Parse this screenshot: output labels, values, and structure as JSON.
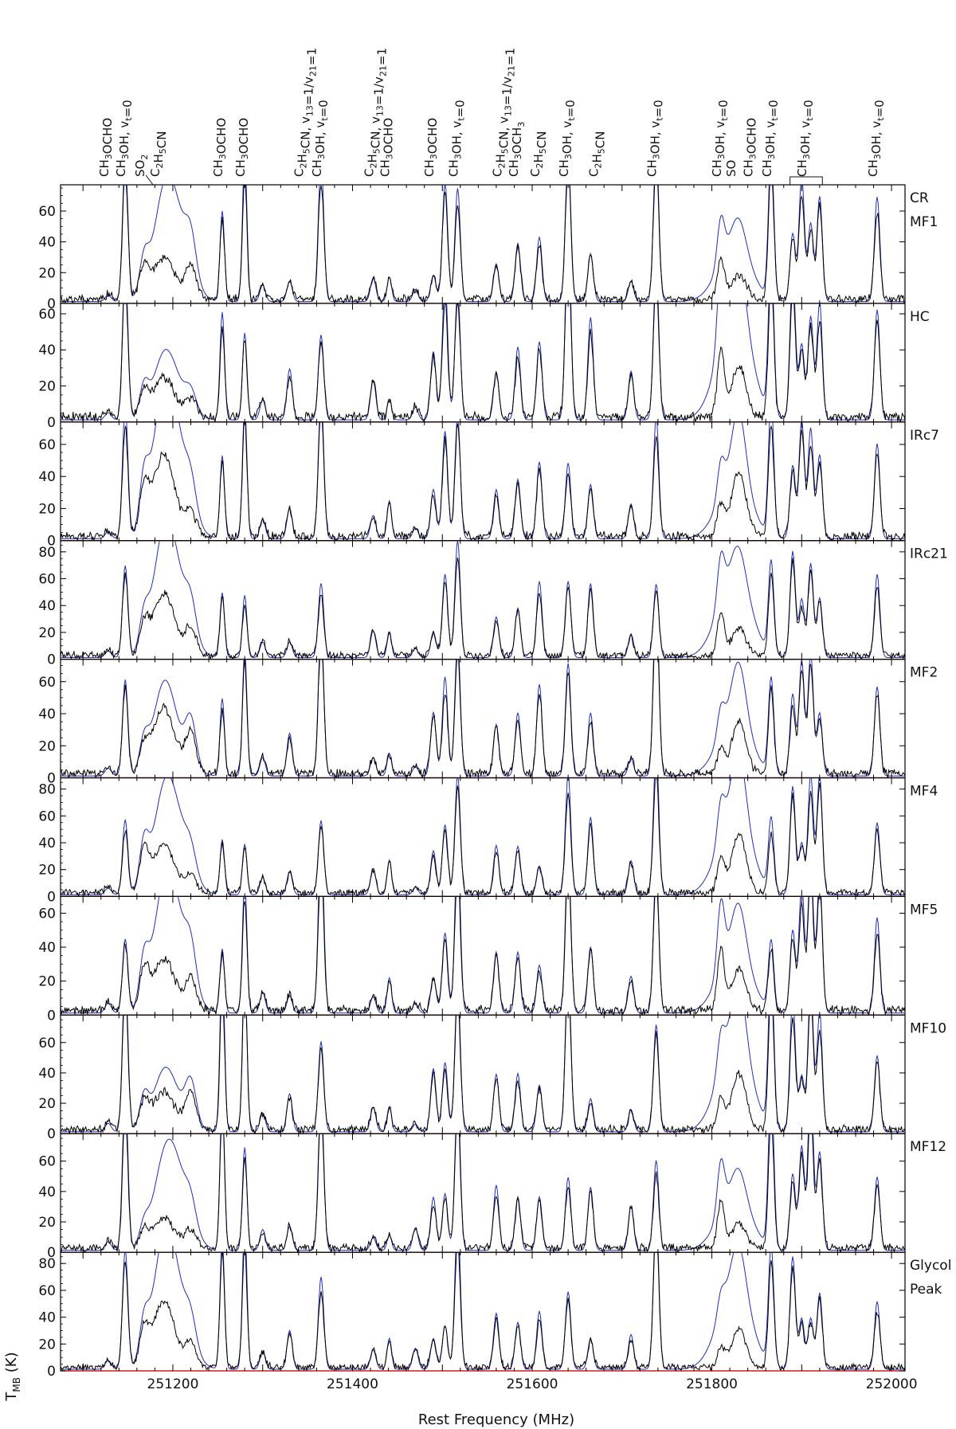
{
  "chart_data": {
    "type": "line",
    "xlabel": "Rest Frequency (MHz)",
    "ylabel": "T_MB (K)",
    "ylabel_main": "T",
    "ylabel_sub": "MB",
    "ylabel_unit": " (K)",
    "xlim": [
      251075,
      252015
    ],
    "xticks": [
      251200,
      251400,
      251600,
      251800,
      252000
    ],
    "xtick_labels": [
      "251200",
      "251400",
      "251600",
      "251800",
      "252000"
    ],
    "colors": {
      "observed": "#000000",
      "model": "#1f2fb8",
      "baseline": "#e01010"
    },
    "series": [
      {
        "name": "observed spectrum",
        "color": "#000000"
      },
      {
        "name": "model",
        "color": "#1f2fb8"
      },
      {
        "name": "baseline",
        "color": "#e01010"
      }
    ],
    "line_labels": [
      {
        "freq": 251128,
        "text": "CH3OCHO",
        "parts": [
          [
            "CH",
            0
          ],
          [
            "3",
            1
          ],
          [
            "OCHO",
            0
          ]
        ]
      },
      {
        "freq": 251147,
        "text": "CH3OH, vt=0",
        "parts": [
          [
            "CH",
            0
          ],
          [
            "3",
            1
          ],
          [
            "OH, v",
            0
          ],
          [
            "t",
            1
          ],
          [
            "=0",
            0
          ]
        ]
      },
      {
        "freq": 251168,
        "text": "SO2",
        "parts": [
          [
            "SO",
            0
          ],
          [
            "2",
            1
          ]
        ]
      },
      {
        "freq": 251185,
        "text": "C2H5CN",
        "parts": [
          [
            "C",
            0
          ],
          [
            "2",
            1
          ],
          [
            "H",
            0
          ],
          [
            "5",
            1
          ],
          [
            "CN",
            0
          ]
        ]
      },
      {
        "freq": 251255,
        "text": "CH3OCHO",
        "parts": [
          [
            "CH",
            0
          ],
          [
            "3",
            1
          ],
          [
            "OCHO",
            0
          ]
        ]
      },
      {
        "freq": 251280,
        "text": "CH3OCHO",
        "parts": [
          [
            "CH",
            0
          ],
          [
            "3",
            1
          ],
          [
            "OCHO",
            0
          ]
        ]
      },
      {
        "freq": 251345,
        "text": "C2H5CN, v13=1/v21=1",
        "parts": [
          [
            "C",
            0
          ],
          [
            "2",
            1
          ],
          [
            "H",
            0
          ],
          [
            "5",
            1
          ],
          [
            "CN, v",
            0
          ],
          [
            "13",
            1
          ],
          [
            "=1/v",
            0
          ],
          [
            "21",
            1
          ],
          [
            "=1",
            0
          ]
        ]
      },
      {
        "freq": 251365,
        "text": "CH3OH, vt=0",
        "parts": [
          [
            "CH",
            0
          ],
          [
            "3",
            1
          ],
          [
            "OH, v",
            0
          ],
          [
            "t",
            1
          ],
          [
            "=0",
            0
          ]
        ]
      },
      {
        "freq": 251423,
        "text": "C2H5CN, v13=1/v21=1",
        "parts": [
          [
            "C",
            0
          ],
          [
            "2",
            1
          ],
          [
            "H",
            0
          ],
          [
            "5",
            1
          ],
          [
            "CN, v",
            0
          ],
          [
            "13",
            1
          ],
          [
            "=1/v",
            0
          ],
          [
            "21",
            1
          ],
          [
            "=1",
            0
          ]
        ]
      },
      {
        "freq": 251441,
        "text": "CH3OCHO",
        "parts": [
          [
            "CH",
            0
          ],
          [
            "3",
            1
          ],
          [
            "OCHO",
            0
          ]
        ]
      },
      {
        "freq": 251490,
        "text": "CH3OCHO",
        "parts": [
          [
            "CH",
            0
          ],
          [
            "3",
            1
          ],
          [
            "OCHO",
            0
          ]
        ]
      },
      {
        "freq": 251517,
        "text": "CH3OH, vt=0",
        "parts": [
          [
            "CH",
            0
          ],
          [
            "3",
            1
          ],
          [
            "OH, v",
            0
          ],
          [
            "t",
            1
          ],
          [
            "=0",
            0
          ]
        ]
      },
      {
        "freq": 251566,
        "text": "C2H5CN, v13=1/v21=1",
        "parts": [
          [
            "C",
            0
          ],
          [
            "2",
            1
          ],
          [
            "H",
            0
          ],
          [
            "5",
            1
          ],
          [
            "CN, v",
            0
          ],
          [
            "13",
            1
          ],
          [
            "=1/v",
            0
          ],
          [
            "21",
            1
          ],
          [
            "=1",
            0
          ]
        ]
      },
      {
        "freq": 251584,
        "text": "CH3OCH3",
        "parts": [
          [
            "CH",
            0
          ],
          [
            "3",
            1
          ],
          [
            "OCH",
            0
          ],
          [
            "3",
            1
          ]
        ]
      },
      {
        "freq": 251608,
        "text": "C2H5CN",
        "parts": [
          [
            "C",
            0
          ],
          [
            "2",
            1
          ],
          [
            "H",
            0
          ],
          [
            "5",
            1
          ],
          [
            "CN",
            0
          ]
        ]
      },
      {
        "freq": 251640,
        "text": "CH3OH, vt=0",
        "parts": [
          [
            "CH",
            0
          ],
          [
            "3",
            1
          ],
          [
            "OH, v",
            0
          ],
          [
            "t",
            1
          ],
          [
            "=0",
            0
          ]
        ]
      },
      {
        "freq": 251673,
        "text": "C2H5CN",
        "parts": [
          [
            "C",
            0
          ],
          [
            "2",
            1
          ],
          [
            "H",
            0
          ],
          [
            "5",
            1
          ],
          [
            "CN",
            0
          ]
        ]
      },
      {
        "freq": 251738,
        "text": "CH3OH, vt=0",
        "parts": [
          [
            "CH",
            0
          ],
          [
            "3",
            1
          ],
          [
            "OH, v",
            0
          ],
          [
            "t",
            1
          ],
          [
            "=0",
            0
          ]
        ]
      },
      {
        "freq": 251810,
        "text": "CH3OH, vt=0",
        "parts": [
          [
            "CH",
            0
          ],
          [
            "3",
            1
          ],
          [
            "OH, v",
            0
          ],
          [
            "t",
            1
          ],
          [
            "=0",
            0
          ]
        ]
      },
      {
        "freq": 251826,
        "text": "SO",
        "parts": [
          [
            "SO",
            0
          ]
        ]
      },
      {
        "freq": 251845,
        "text": "CH3OCHO",
        "parts": [
          [
            "CH",
            0
          ],
          [
            "3",
            1
          ],
          [
            "OCHO",
            0
          ]
        ]
      },
      {
        "freq": 251866,
        "text": "CH3OH, vt=0",
        "parts": [
          [
            "CH",
            0
          ],
          [
            "3",
            1
          ],
          [
            "OH, v",
            0
          ],
          [
            "t",
            1
          ],
          [
            "=0",
            0
          ]
        ]
      },
      {
        "freq": 251905,
        "text": "CH3OH, vt=0",
        "parts": [
          [
            "CH",
            0
          ],
          [
            "3",
            1
          ],
          [
            "OH, v",
            0
          ],
          [
            "t",
            1
          ],
          [
            "=0",
            0
          ]
        ]
      },
      {
        "freq": 251984,
        "text": "CH3OH, vt=0",
        "parts": [
          [
            "CH",
            0
          ],
          [
            "3",
            1
          ],
          [
            "OH, v",
            0
          ],
          [
            "t",
            1
          ],
          [
            "=0",
            0
          ]
        ]
      }
    ],
    "panels": [
      {
        "name": "CR MF1",
        "label_lines": [
          "CR",
          "MF1"
        ],
        "ylim": [
          0,
          75
        ],
        "yticks": [
          0,
          20,
          40,
          60
        ]
      },
      {
        "name": "HC",
        "label_lines": [
          "HC"
        ],
        "ylim": [
          0,
          64
        ],
        "yticks": [
          0,
          20,
          40,
          60
        ]
      },
      {
        "name": "IRc7",
        "label_lines": [
          "IRc7"
        ],
        "ylim": [
          0,
          72
        ],
        "yticks": [
          0,
          20,
          40,
          60
        ]
      },
      {
        "name": "IRc21",
        "label_lines": [
          "IRc21"
        ],
        "ylim": [
          0,
          86
        ],
        "yticks": [
          0,
          20,
          40,
          60,
          80
        ]
      },
      {
        "name": "MF2",
        "label_lines": [
          "MF2"
        ],
        "ylim": [
          0,
          72
        ],
        "yticks": [
          0,
          20,
          40,
          60
        ]
      },
      {
        "name": "MF4",
        "label_lines": [
          "MF4"
        ],
        "ylim": [
          0,
          86
        ],
        "yticks": [
          0,
          20,
          40,
          60,
          80
        ]
      },
      {
        "name": "MF5",
        "label_lines": [
          "MF5"
        ],
        "ylim": [
          0,
          68
        ],
        "yticks": [
          0,
          20,
          40,
          60
        ]
      },
      {
        "name": "MF10",
        "label_lines": [
          "MF10"
        ],
        "ylim": [
          0,
          76
        ],
        "yticks": [
          0,
          20,
          40,
          60
        ]
      },
      {
        "name": "MF12",
        "label_lines": [
          "MF12"
        ],
        "ylim": [
          0,
          76
        ],
        "yticks": [
          0,
          20,
          40,
          60
        ]
      },
      {
        "name": "Glycol Peak",
        "label_lines": [
          "Glycol",
          "Peak"
        ],
        "ylim": [
          0,
          86
        ],
        "yticks": [
          0,
          20,
          40,
          60,
          80
        ]
      }
    ],
    "peaks": [
      [
        251128,
        3.5,
        5
      ],
      [
        251147,
        3,
        70
      ],
      [
        251168,
        5,
        22
      ],
      [
        251190,
        12,
        38
      ],
      [
        251220,
        6,
        20
      ],
      [
        251255,
        2.5,
        70
      ],
      [
        251280,
        2.5,
        75
      ],
      [
        251300,
        3,
        15
      ],
      [
        251330,
        3,
        20
      ],
      [
        251365,
        3,
        80
      ],
      [
        251423,
        3,
        15
      ],
      [
        251441,
        2.5,
        18
      ],
      [
        251470,
        3,
        10
      ],
      [
        251490,
        3,
        30
      ],
      [
        251503,
        3,
        55
      ],
      [
        251517,
        3,
        72
      ],
      [
        251560,
        3,
        30
      ],
      [
        251584,
        3,
        35
      ],
      [
        251608,
        3,
        40
      ],
      [
        251640,
        3,
        78
      ],
      [
        251665,
        3,
        40
      ],
      [
        251710,
        3,
        20
      ],
      [
        251738,
        3,
        78
      ],
      [
        251810,
        4,
        30
      ],
      [
        251830,
        8,
        35
      ],
      [
        251866,
        3,
        75
      ],
      [
        251890,
        3,
        65
      ],
      [
        251900,
        3,
        65
      ],
      [
        251910,
        3,
        70
      ],
      [
        251920,
        3,
        60
      ],
      [
        251984,
        3,
        75
      ]
    ]
  }
}
